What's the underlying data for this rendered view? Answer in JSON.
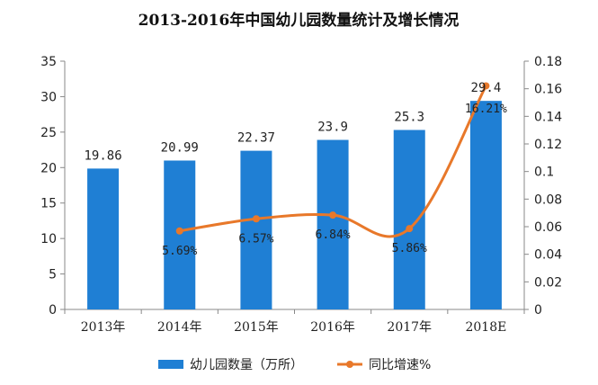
{
  "chart_data": {
    "type": "bar",
    "title": "2013-2016年中国幼儿园数量统计及增长情况",
    "categories": [
      "2013年",
      "2014年",
      "2015年",
      "2016年",
      "2017年",
      "2018E"
    ],
    "series": [
      {
        "name": "幼儿园数量（万所）",
        "type": "bar",
        "axis": "left",
        "values": [
          19.86,
          20.99,
          22.37,
          23.9,
          25.3,
          29.4
        ],
        "labels": [
          "19.86",
          "20.99",
          "22.37",
          "23.9",
          "25.3",
          "29.4"
        ],
        "color": "#1f7fd4"
      },
      {
        "name": "同比增速%",
        "type": "line",
        "axis": "right",
        "values": [
          null,
          0.0569,
          0.0657,
          0.0684,
          0.0586,
          0.1621
        ],
        "labels": [
          "",
          "5.69%",
          "6.57%",
          "6.84%",
          "5.86%",
          "16.21%"
        ],
        "color": "#e8782a"
      }
    ],
    "y_left": {
      "min": 0,
      "max": 35,
      "step": 5,
      "ticks": [
        "0",
        "5",
        "10",
        "15",
        "20",
        "25",
        "30",
        "35"
      ]
    },
    "y_right": {
      "min": 0,
      "max": 0.18,
      "step": 0.02,
      "ticks": [
        "0",
        "0.02",
        "0.04",
        "0.06",
        "0.08",
        "0.1",
        "0.12",
        "0.14",
        "0.16",
        "0.18"
      ]
    },
    "grid": false,
    "legend_position": "bottom"
  }
}
